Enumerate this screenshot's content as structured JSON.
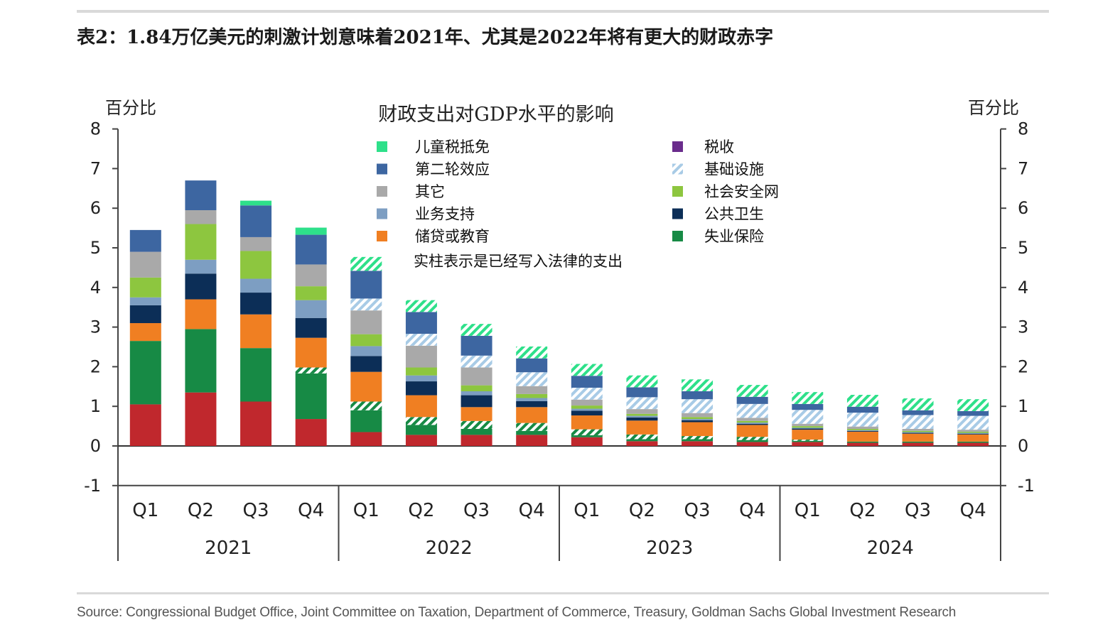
{
  "title": "表2：1.84万亿美元的刺激计划意味着2021年、尤其是2022年将有更大的财政赤字",
  "source": "Source: Congressional Budget Office, Joint Committee on Taxation, Department of Commerce, Treasury, Goldman Sachs Global Investment Research",
  "colors": {
    "unemployment": "#c0282d",
    "child_tax": "#2ee08a",
    "second_round": "#3d66a1",
    "other": "#a9a9a9",
    "business": "#7d9ec2",
    "loans_education": "#f07f22",
    "tax": "#6a2c8c",
    "infrastructure": "#a8cbe6",
    "safety_net": "#8dc63f",
    "public_health": "#0c2e57",
    "unemployment_ins": "#178a45"
  },
  "chart_data": {
    "type": "bar",
    "stacked": true,
    "title": "财政支出对GDP水平的影响",
    "ylabel_left": "百分比",
    "ylabel_right": "百分比",
    "ylim": [
      -1,
      8
    ],
    "yticks": [
      -1,
      0,
      1,
      2,
      3,
      4,
      5,
      6,
      7,
      8
    ],
    "categories": [
      "Q1",
      "Q2",
      "Q3",
      "Q4",
      "Q1",
      "Q2",
      "Q3",
      "Q4",
      "Q1",
      "Q2",
      "Q3",
      "Q4",
      "Q1",
      "Q2",
      "Q3",
      "Q4"
    ],
    "years": [
      "2021",
      "2022",
      "2023",
      "2024"
    ],
    "legend_note": "实柱表示是已经写入法律的支出",
    "legend": [
      {
        "key": "child_tax",
        "label": "儿童税抵免"
      },
      {
        "key": "second_round",
        "label": "第二轮效应"
      },
      {
        "key": "other",
        "label": "其它"
      },
      {
        "key": "business",
        "label": "业务支持"
      },
      {
        "key": "loans_education",
        "label": "储贷或教育"
      },
      {
        "key": "tax",
        "label": "税收"
      },
      {
        "key": "infrastructure",
        "label": "基础设施"
      },
      {
        "key": "safety_net",
        "label": "社会安全网"
      },
      {
        "key": "public_health",
        "label": "公共卫生"
      },
      {
        "key": "unemployment_ins",
        "label": "失业保险"
      }
    ],
    "series": [
      {
        "key": "unemployment",
        "hatched": false,
        "values": [
          1.05,
          1.35,
          1.12,
          0.68,
          0.35,
          0.28,
          0.28,
          0.28,
          0.22,
          0.12,
          0.12,
          0.1,
          0.1,
          0.08,
          0.08,
          0.08
        ]
      },
      {
        "key": "unemployment_ins",
        "hatched": false,
        "values": [
          1.6,
          1.6,
          1.35,
          1.15,
          0.55,
          0.25,
          0.15,
          0.1,
          0.05,
          0.05,
          0.05,
          0.05,
          0.03,
          0.03,
          0.03,
          0.03
        ]
      },
      {
        "key": "unemployment_ins",
        "hatched": true,
        "values": [
          0,
          0,
          0,
          0.15,
          0.22,
          0.2,
          0.2,
          0.2,
          0.15,
          0.12,
          0.08,
          0.08,
          0.03,
          0,
          0,
          0
        ]
      },
      {
        "key": "loans_education",
        "hatched": false,
        "values": [
          0.45,
          0.75,
          0.85,
          0.75,
          0.75,
          0.55,
          0.35,
          0.4,
          0.35,
          0.35,
          0.35,
          0.3,
          0.25,
          0.25,
          0.2,
          0.18
        ]
      },
      {
        "key": "public_health",
        "hatched": false,
        "values": [
          0.45,
          0.65,
          0.55,
          0.5,
          0.4,
          0.35,
          0.3,
          0.15,
          0.12,
          0.08,
          0.05,
          0.03,
          0.03,
          0.02,
          0.02,
          0.02
        ]
      },
      {
        "key": "business",
        "hatched": false,
        "values": [
          0.2,
          0.35,
          0.35,
          0.45,
          0.25,
          0.15,
          0.1,
          0.08,
          0.05,
          0.04,
          0.03,
          0.03,
          0.02,
          0.02,
          0.02,
          0.02
        ]
      },
      {
        "key": "safety_net",
        "hatched": false,
        "values": [
          0.5,
          0.9,
          0.7,
          0.35,
          0.3,
          0.2,
          0.15,
          0.1,
          0.08,
          0.05,
          0.05,
          0.04,
          0.04,
          0.03,
          0.03,
          0.03
        ]
      },
      {
        "key": "other",
        "hatched": false,
        "values": [
          0.65,
          0.35,
          0.35,
          0.55,
          0.6,
          0.55,
          0.45,
          0.2,
          0.15,
          0.12,
          0.1,
          0.08,
          0.06,
          0.06,
          0.05,
          0.05
        ]
      },
      {
        "key": "infrastructure",
        "hatched": true,
        "values": [
          0,
          0,
          0,
          0,
          0.3,
          0.3,
          0.3,
          0.35,
          0.3,
          0.3,
          0.35,
          0.35,
          0.35,
          0.35,
          0.35,
          0.35
        ]
      },
      {
        "key": "second_round",
        "hatched": false,
        "values": [
          0.55,
          0.75,
          0.8,
          0.75,
          0.7,
          0.55,
          0.5,
          0.35,
          0.3,
          0.25,
          0.2,
          0.18,
          0.15,
          0.15,
          0.12,
          0.12
        ]
      },
      {
        "key": "child_tax",
        "hatched": true,
        "values": [
          0,
          0,
          0,
          0,
          0.35,
          0.3,
          0.3,
          0.3,
          0.3,
          0.3,
          0.3,
          0.3,
          0.3,
          0.3,
          0.3,
          0.3
        ]
      },
      {
        "key": "child_tax",
        "hatched": false,
        "values": [
          0,
          0,
          0.12,
          0.18,
          0,
          0,
          0,
          0,
          0,
          0,
          0,
          0,
          0,
          0,
          0,
          0
        ]
      }
    ]
  }
}
